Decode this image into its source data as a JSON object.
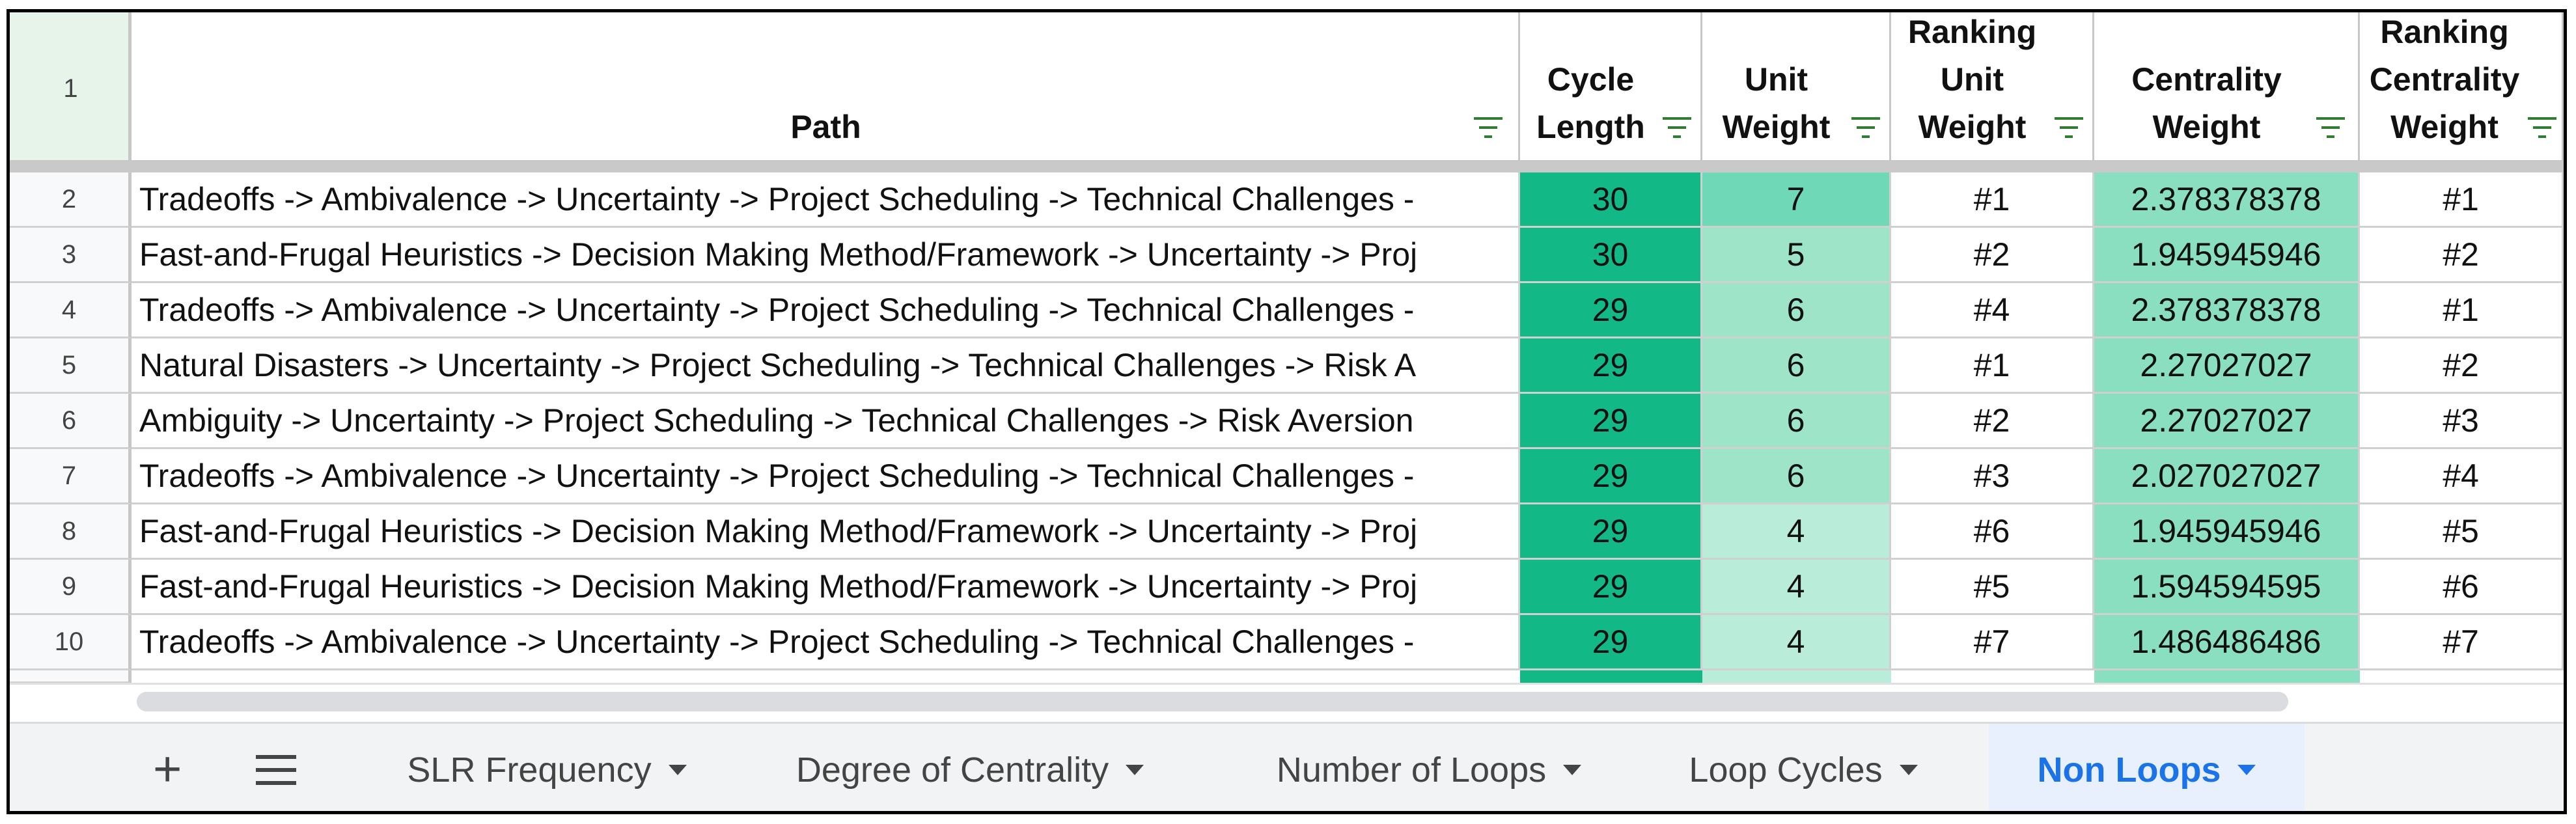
{
  "colors": {
    "cycle": "#12b886",
    "unit_hi": "#6fd8b6",
    "unit_lo": "#b9ecd9",
    "centrality": "#89dfc0"
  },
  "columns": {
    "row_label": "1",
    "path": "Path",
    "cycle_length": "Cycle Length",
    "unit_weight": "Unit Weight",
    "ranking_unit_weight": "Ranking Unit Weight",
    "centrality_weight": "Centrality Weight",
    "ranking_centrality_weight": "Ranking Centrality Weight"
  },
  "rows": [
    {
      "row": "2",
      "path": "Tradeoffs -> Ambivalence -> Uncertainty -> Project Scheduling -> Technical Challenges -",
      "cycle": "30",
      "unit": "7",
      "rank_unit": "#1",
      "centrality": "2.378378378",
      "rank_centrality": "#1"
    },
    {
      "row": "3",
      "path": "Fast-and-Frugal Heuristics -> Decision Making Method/Framework -> Uncertainty -> Proj",
      "cycle": "30",
      "unit": "5",
      "rank_unit": "#2",
      "centrality": "1.945945946",
      "rank_centrality": "#2"
    },
    {
      "row": "4",
      "path": "Tradeoffs -> Ambivalence -> Uncertainty -> Project Scheduling -> Technical Challenges -",
      "cycle": "29",
      "unit": "6",
      "rank_unit": "#4",
      "centrality": "2.378378378",
      "rank_centrality": "#1"
    },
    {
      "row": "5",
      "path": "Natural Disasters -> Uncertainty -> Project Scheduling -> Technical Challenges -> Risk A",
      "cycle": "29",
      "unit": "6",
      "rank_unit": "#1",
      "centrality": "2.27027027",
      "rank_centrality": "#2"
    },
    {
      "row": "6",
      "path": "Ambiguity -> Uncertainty -> Project Scheduling -> Technical Challenges -> Risk Aversion",
      "cycle": "29",
      "unit": "6",
      "rank_unit": "#2",
      "centrality": "2.27027027",
      "rank_centrality": "#3"
    },
    {
      "row": "7",
      "path": "Tradeoffs -> Ambivalence -> Uncertainty -> Project Scheduling -> Technical Challenges -",
      "cycle": "29",
      "unit": "6",
      "rank_unit": "#3",
      "centrality": "2.027027027",
      "rank_centrality": "#4"
    },
    {
      "row": "8",
      "path": "Fast-and-Frugal Heuristics -> Decision Making Method/Framework -> Uncertainty -> Proj",
      "cycle": "29",
      "unit": "4",
      "rank_unit": "#6",
      "centrality": "1.945945946",
      "rank_centrality": "#5"
    },
    {
      "row": "9",
      "path": "Fast-and-Frugal Heuristics -> Decision Making Method/Framework -> Uncertainty -> Proj",
      "cycle": "29",
      "unit": "4",
      "rank_unit": "#5",
      "centrality": "1.594594595",
      "rank_centrality": "#6"
    },
    {
      "row": "10",
      "path": "Tradeoffs -> Ambivalence -> Uncertainty -> Project Scheduling -> Technical Challenges -",
      "cycle": "29",
      "unit": "4",
      "rank_unit": "#7",
      "centrality": "1.486486486",
      "rank_centrality": "#7"
    }
  ],
  "tabs": [
    {
      "label": "SLR Frequency",
      "active": false
    },
    {
      "label": "Degree of Centrality",
      "active": false
    },
    {
      "label": "Number of Loops",
      "active": false
    },
    {
      "label": "Loop Cycles",
      "active": false
    },
    {
      "label": "Non Loops",
      "active": true
    }
  ],
  "add_sheet_symbol": "+",
  "icons": {
    "filter": "filter-icon",
    "menu": "all-sheets-menu-icon"
  }
}
